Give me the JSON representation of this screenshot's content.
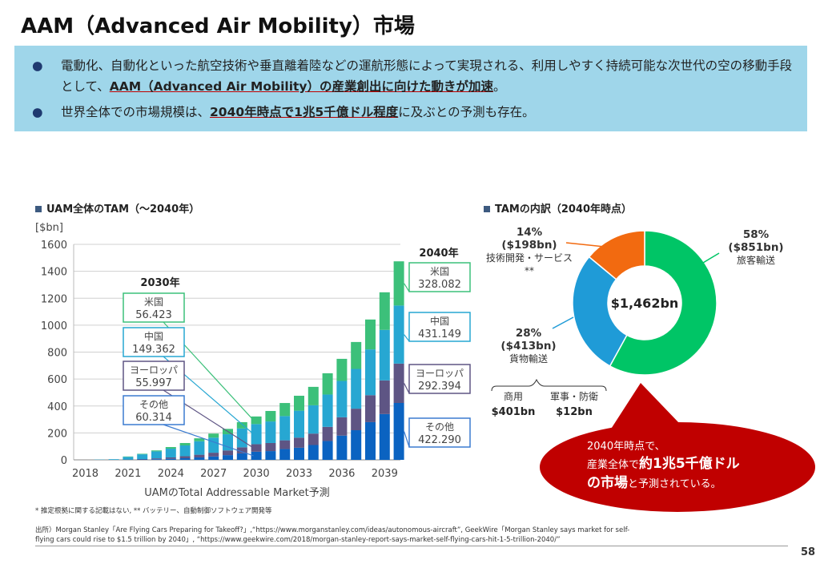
{
  "title": "AAM（Advanced Air Mobility）市場",
  "summary": {
    "bullet1_pre": "電動化、自動化といった航空技術や垂直離着陸などの運航形態によって実現される、利用しやすく持続可能な次世代の空の移動手段として、",
    "bullet1_emph": "AAM（Advanced Air Mobility）の産業創出に向けた動きが加速",
    "bullet1_post": "。",
    "bullet2_pre": "世界全体での市場規模は、",
    "bullet2_emph": "2040年時点で1兆5千億ドル程度",
    "bullet2_post": "に及ぶとの予測も存在。"
  },
  "chart_data": [
    {
      "type": "bar",
      "stacked": true,
      "title": "UAM全体のTAM（～2040年）",
      "ylabel": "[$bn]",
      "xlabel": "UAMのTotal Addressable Market予測",
      "ylim": [
        0,
        1600
      ],
      "yticks": [
        0,
        200,
        400,
        600,
        800,
        1000,
        1200,
        1400,
        1600
      ],
      "xtick_labels": [
        "2018",
        "2021",
        "2024",
        "2027",
        "2030",
        "2033",
        "2036",
        "2039"
      ],
      "grid": true,
      "categories": [
        "2018",
        "2019",
        "2020",
        "2021",
        "2022",
        "2023",
        "2024",
        "2025",
        "2026",
        "2027",
        "2028",
        "2029",
        "2030",
        "2031",
        "2032",
        "2033",
        "2034",
        "2035",
        "2036",
        "2037",
        "2038",
        "2039",
        "2040"
      ],
      "series": [
        {
          "name": "その他",
          "color": "#0b63c1",
          "values": [
            0,
            0,
            0,
            1,
            3,
            5,
            8,
            12,
            18,
            25,
            35,
            48,
            60.314,
            65,
            80,
            90,
            110,
            140,
            180,
            220,
            280,
            340,
            422.29
          ]
        },
        {
          "name": "ヨーロッパ",
          "color": "#5e5584",
          "values": [
            0,
            0,
            0,
            1,
            3,
            6,
            10,
            15,
            20,
            28,
            35,
            45,
            55.997,
            60,
            65,
            75,
            85,
            105,
            136,
            160,
            200,
            250,
            292.394
          ]
        },
        {
          "name": "中国",
          "color": "#27a7d2",
          "values": [
            0,
            2,
            5,
            20,
            35,
            52,
            65,
            80,
            100,
            112,
            120,
            140,
            149.362,
            160,
            180,
            200,
            210,
            240,
            270,
            295,
            340,
            375,
            431.149
          ]
        },
        {
          "name": "米国",
          "color": "#3cc07a",
          "values": [
            0,
            0,
            0,
            3,
            4,
            7,
            12,
            18,
            22,
            30,
            40,
            47,
            56.423,
            78,
            97,
            111,
            137,
            158,
            164,
            200,
            222,
            279,
            328.082
          ]
        }
      ],
      "annotations": {
        "y2030": {
          "label": "2030年",
          "items": [
            {
              "name": "米国",
              "value": "56.423"
            },
            {
              "name": "中国",
              "value": "149.362"
            },
            {
              "name": "ヨーロッパ",
              "value": "55.997"
            },
            {
              "name": "その他",
              "value": "60.314"
            }
          ]
        },
        "y2040": {
          "label": "2040年",
          "items": [
            {
              "name": "米国",
              "value": "328.082"
            },
            {
              "name": "中国",
              "value": "431.149"
            },
            {
              "name": "ヨーロッパ",
              "value": "292.394"
            },
            {
              "name": "その他",
              "value": "422.290"
            }
          ]
        }
      }
    },
    {
      "type": "pie",
      "donut": true,
      "title": "TAMの内訳（2040年時点）",
      "center_label": "$1,462bn",
      "slices": [
        {
          "pct": "58%",
          "value": "($851bn)",
          "label": "旅客輸送",
          "share": 58,
          "color": "#00c566"
        },
        {
          "pct": "28%",
          "value": "($413bn)",
          "label": "貨物輸送",
          "share": 28,
          "color": "#1f9bd7"
        },
        {
          "pct": "14%",
          "value": "($198bn)",
          "label": "技術開発・サービス",
          "note": "**",
          "share": 14,
          "color": "#f26a10"
        }
      ],
      "cargo_breakdown": [
        {
          "label": "商用",
          "value": "$401bn"
        },
        {
          "label": "軍事・防衛",
          "value": "$12bn"
        }
      ]
    }
  ],
  "callout": {
    "line1": "2040年時点で、",
    "line2_pre": "産業全体で",
    "line2_emph": "約1兆5千億ドル",
    "line3_emph": "の市場",
    "line3_post": "と予測されている。",
    "color": "#c00000"
  },
  "footnote": "* 推定根拠に関する記載はない, ** バッテリー、自動制御ソフトウェア開発等",
  "source_line1": "出所）Morgan Stanley「Are Flying Cars Preparing for Takeoff?」,“https://www.morganstanley.com/ideas/autonomous-aircraft”, GeekWire「Morgan Stanley says market for self-",
  "source_line2": "flying cars could rise to $1.5 trillion by 2040」, “https://www.geekwire.com/2018/morgan-stanley-report-says-market-self-flying-cars-hit-1-5-trillion-2040/”",
  "page_number": "58"
}
